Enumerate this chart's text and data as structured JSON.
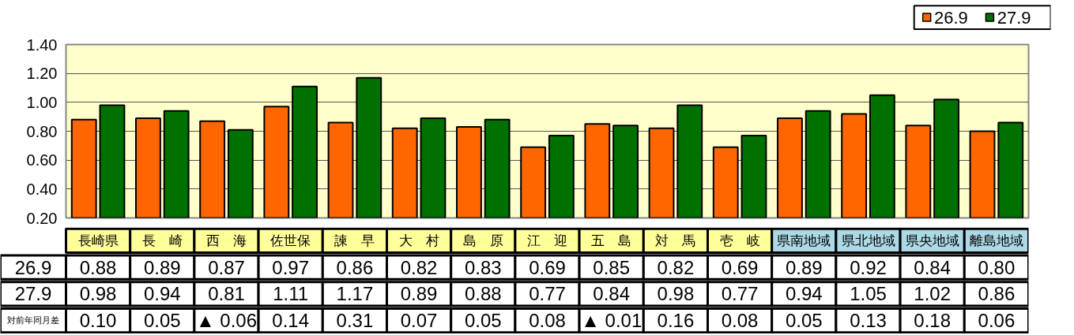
{
  "chart_data": {
    "type": "bar",
    "categories": [
      "長崎県",
      "長　崎",
      "西　海",
      "佐世保",
      "諫　早",
      "大　村",
      "島　原",
      "江　迎",
      "五　島",
      "対　馬",
      "壱　岐",
      "県南地域",
      "県北地域",
      "県央地域",
      "離島地域"
    ],
    "series": [
      {
        "name": "26.9",
        "color": "#ff6600",
        "values": [
          0.88,
          0.89,
          0.87,
          0.97,
          0.86,
          0.82,
          0.83,
          0.69,
          0.85,
          0.82,
          0.69,
          0.89,
          0.92,
          0.84,
          0.8
        ],
        "value_labels": [
          "0.88",
          "0.89",
          "0.87",
          "0.97",
          "0.86",
          "0.82",
          "0.83",
          "0.69",
          "0.85",
          "0.82",
          "0.69",
          "0.89",
          "0.92",
          "0.84",
          "0.80"
        ]
      },
      {
        "name": "27.9",
        "color": "#007000",
        "values": [
          0.98,
          0.94,
          0.81,
          1.11,
          1.17,
          0.89,
          0.88,
          0.77,
          0.84,
          0.98,
          0.77,
          0.94,
          1.05,
          1.02,
          0.86
        ],
        "value_labels": [
          "0.98",
          "0.94",
          "0.81",
          "1.11",
          "1.17",
          "0.89",
          "0.88",
          "0.77",
          "0.84",
          "0.98",
          "0.77",
          "0.94",
          "1.05",
          "1.02",
          "0.86"
        ]
      }
    ],
    "ylim": [
      0.2,
      1.4
    ],
    "yticks": [
      {
        "value": 0.2,
        "label": "0.20"
      },
      {
        "value": 0.4,
        "label": "0.40"
      },
      {
        "value": 0.6,
        "label": "0.60"
      },
      {
        "value": 0.8,
        "label": "0.80"
      },
      {
        "value": 1.0,
        "label": "1.00"
      },
      {
        "value": 1.2,
        "label": "1.20"
      },
      {
        "value": 1.4,
        "label": "1.40"
      }
    ],
    "grid": "y",
    "legend": "top right",
    "tick_labels": "y",
    "annotations": [
      "対前年同月差",
      "0.10",
      "0.05",
      "▲ 0.06",
      "0.14",
      "0.31",
      "0.07",
      "0.05",
      "0.08",
      "▲ 0.01",
      "0.16",
      "0.08",
      "0.05",
      "0.13",
      "0.18",
      "0.06"
    ]
  }
}
